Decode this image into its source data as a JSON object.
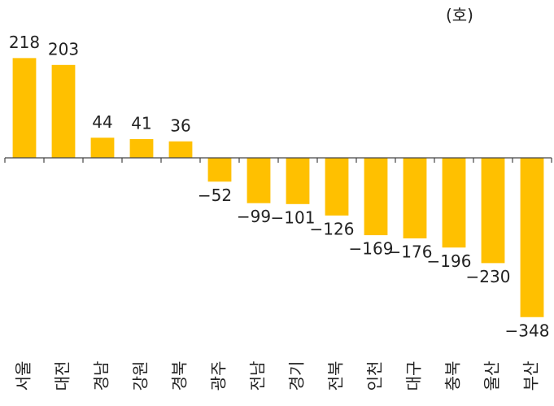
{
  "chart_data": {
    "type": "bar",
    "unit": "(호)",
    "categories": [
      "서울",
      "대전",
      "경남",
      "강원",
      "경북",
      "광주",
      "전남",
      "경기",
      "전북",
      "인천",
      "대구",
      "충북",
      "울산",
      "부산"
    ],
    "values": [
      218,
      203,
      44,
      41,
      36,
      -52,
      -99,
      -101,
      -126,
      -169,
      -176,
      -196,
      -230,
      -348
    ],
    "value_labels": [
      "218",
      "203",
      "44",
      "41",
      "36",
      "−52",
      "−99",
      "−101",
      "−126",
      "−169",
      "−176",
      "−196",
      "−230",
      "−348"
    ],
    "color": "#ffc000",
    "ylim": [
      -400,
      300
    ]
  }
}
